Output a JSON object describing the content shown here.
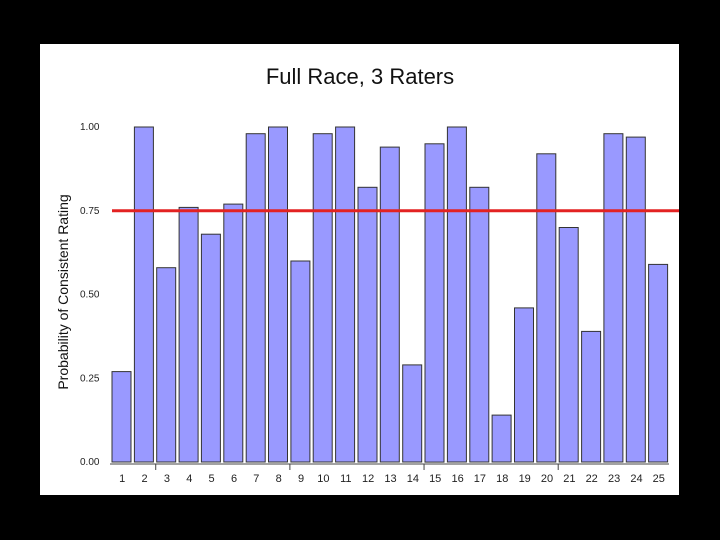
{
  "chart_data": {
    "type": "bar",
    "title": "Full Race, 3 Raters",
    "xlabel": "",
    "ylabel": "Probability of Consistent Rating",
    "categories": [
      "1",
      "2",
      "3",
      "4",
      "5",
      "6",
      "7",
      "8",
      "9",
      "10",
      "11",
      "12",
      "13",
      "14",
      "15",
      "16",
      "17",
      "18",
      "19",
      "20",
      "21",
      "22",
      "23",
      "24",
      "25"
    ],
    "values": [
      0.27,
      1.0,
      0.58,
      0.76,
      0.68,
      0.77,
      0.98,
      1.0,
      0.6,
      0.98,
      1.0,
      0.82,
      0.94,
      0.29,
      0.95,
      1.0,
      0.82,
      0.14,
      0.46,
      0.92,
      0.7,
      0.39,
      0.98,
      0.97,
      0.59
    ],
    "ylim": [
      0,
      1
    ],
    "yticks": [
      "0.00",
      "0.25",
      "0.50",
      "0.75",
      "1.00"
    ],
    "reference_line": 0.75,
    "grid": false,
    "colors": {
      "bar_fill": "#9999ff",
      "bar_stroke": "#333333",
      "reference_line": "#e32222",
      "background": "#000000",
      "panel": "#ffffff"
    }
  }
}
